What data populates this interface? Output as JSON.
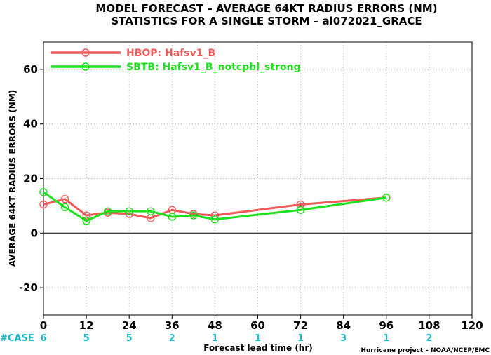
{
  "chart_data": {
    "type": "line",
    "title": "MODEL FORECAST – AVERAGE 64KT RADIUS ERRORS (NM)",
    "subtitle": "STATISTICS FOR A SINGLE STORM – al072021_GRACE",
    "xlabel": "Forecast lead time (hr)",
    "ylabel": "AVERAGE 64KT RADIUS ERRORS (NM)",
    "xlim": [
      0,
      120
    ],
    "ylim": [
      -30,
      70
    ],
    "x_ticks": [
      0,
      12,
      24,
      36,
      48,
      60,
      72,
      84,
      96,
      108,
      120
    ],
    "y_ticks": [
      -20,
      0,
      20,
      40,
      60
    ],
    "grid": true,
    "legend_position": "top-left",
    "series": [
      {
        "name": "HBOP: Hafsv1_B",
        "color": "#f25a5a",
        "x": [
          0,
          6,
          12,
          18,
          24,
          30,
          36,
          42,
          48,
          72,
          96
        ],
        "y": [
          10.5,
          12.5,
          6.5,
          7.5,
          7.0,
          5.5,
          8.5,
          7.0,
          6.5,
          10.5,
          13.0
        ]
      },
      {
        "name": "SBTB: Hafsv1_B_notcpbl_strong",
        "color": "#1ee01e",
        "x": [
          0,
          6,
          12,
          18,
          24,
          30,
          36,
          42,
          48,
          72,
          96
        ],
        "y": [
          15.0,
          9.5,
          4.5,
          8.0,
          8.0,
          8.0,
          6.0,
          6.5,
          5.0,
          8.5,
          13.0
        ]
      }
    ],
    "case_counts": {
      "label": "#CASE",
      "x": [
        0,
        12,
        24,
        36,
        48,
        60,
        72,
        84,
        96,
        108
      ],
      "values": [
        "6",
        "5",
        "5",
        "2",
        "1",
        "1",
        "1",
        "3",
        "1",
        "2"
      ]
    },
    "credit": "Hurricane project – NOAA/NCEP/EMC"
  }
}
